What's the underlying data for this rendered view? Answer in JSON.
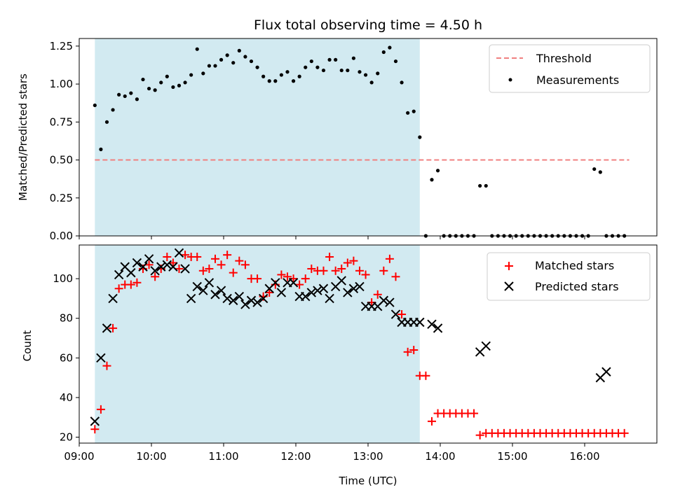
{
  "chart_data": [
    {
      "type": "scatter",
      "title": "Flux total observing time = 4.50 h",
      "ylabel": "Matched/Predicted stars",
      "xlabel": "",
      "xlim": [
        "09:00",
        "17:00"
      ],
      "ylim": [
        0,
        1.3
      ],
      "yticks": [
        "0.00",
        "0.25",
        "0.50",
        "0.75",
        "1.00",
        "1.25"
      ],
      "shaded_interval": [
        "09:13",
        "13:43"
      ],
      "shade_color": "#add8e6",
      "legend_position": "top-right",
      "threshold": {
        "name": "Threshold",
        "y": 0.5,
        "xrange": [
          "09:13",
          "16:37"
        ],
        "color": "#f08080"
      },
      "series": [
        {
          "name": "Measurements",
          "color": "#000000",
          "x": [
            "09:13",
            "09:18",
            "09:23",
            "09:28",
            "09:33",
            "09:38",
            "09:43",
            "09:48",
            "09:53",
            "09:58",
            "10:03",
            "10:08",
            "10:13",
            "10:18",
            "10:23",
            "10:28",
            "10:33",
            "10:38",
            "10:43",
            "10:48",
            "10:53",
            "10:58",
            "11:03",
            "11:08",
            "11:13",
            "11:18",
            "11:23",
            "11:28",
            "11:33",
            "11:38",
            "11:43",
            "11:48",
            "11:53",
            "11:58",
            "12:03",
            "12:08",
            "12:13",
            "12:18",
            "12:23",
            "12:28",
            "12:33",
            "12:38",
            "12:43",
            "12:48",
            "12:53",
            "12:58",
            "13:03",
            "13:08",
            "13:13",
            "13:18",
            "13:23",
            "13:28",
            "13:33",
            "13:38",
            "13:43",
            "13:48",
            "13:53",
            "13:58",
            "14:03",
            "14:08",
            "14:13",
            "14:18",
            "14:23",
            "14:28",
            "14:33",
            "14:38",
            "14:43",
            "14:48",
            "14:53",
            "14:58",
            "15:03",
            "15:08",
            "15:13",
            "15:18",
            "15:23",
            "15:28",
            "15:33",
            "15:38",
            "15:43",
            "15:48",
            "15:53",
            "15:58",
            "16:03",
            "16:08",
            "16:13",
            "16:18",
            "16:23",
            "16:28",
            "16:33"
          ],
          "y": [
            0.86,
            0.57,
            0.75,
            0.83,
            0.93,
            0.92,
            0.94,
            0.9,
            1.03,
            0.97,
            0.96,
            1.01,
            1.05,
            0.98,
            0.99,
            1.01,
            1.06,
            1.23,
            1.07,
            1.12,
            1.12,
            1.16,
            1.19,
            1.14,
            1.22,
            1.18,
            1.15,
            1.11,
            1.05,
            1.02,
            1.02,
            1.06,
            1.08,
            1.02,
            1.05,
            1.11,
            1.15,
            1.11,
            1.09,
            1.16,
            1.16,
            1.09,
            1.09,
            1.17,
            1.08,
            1.06,
            1.01,
            1.07,
            1.21,
            1.24,
            1.15,
            1.01,
            0.81,
            0.82,
            0.65,
            0.0,
            0.37,
            0.43,
            0.0,
            0.0,
            0.0,
            0.0,
            0.0,
            0.0,
            0.33,
            0.33,
            0.0,
            0.0,
            0.0,
            0.0,
            0.0,
            0.0,
            0.0,
            0.0,
            0.0,
            0.0,
            0.0,
            0.0,
            0.0,
            0.0,
            0.0,
            0.0,
            0.0,
            0.44,
            0.42,
            0.0,
            0.0,
            0.0,
            0.0
          ]
        }
      ]
    },
    {
      "type": "scatter",
      "title": "",
      "xlabel": "Time (UTC)",
      "ylabel": "Count",
      "xlim": [
        "09:00",
        "17:00"
      ],
      "xticks": [
        "09:00",
        "10:00",
        "11:00",
        "12:00",
        "13:00",
        "14:00",
        "15:00",
        "16:00"
      ],
      "ylim": [
        17,
        117
      ],
      "yticks": [
        "20",
        "40",
        "60",
        "80",
        "100"
      ],
      "shaded_interval": [
        "09:13",
        "13:43"
      ],
      "shade_color": "#add8e6",
      "legend_position": "top-right",
      "series": [
        {
          "name": "Matched stars",
          "color": "#ff0000",
          "marker": "plus",
          "x": [
            "09:13",
            "09:18",
            "09:23",
            "09:28",
            "09:33",
            "09:38",
            "09:43",
            "09:48",
            "09:53",
            "09:58",
            "10:03",
            "10:08",
            "10:13",
            "10:18",
            "10:23",
            "10:28",
            "10:33",
            "10:38",
            "10:43",
            "10:48",
            "10:53",
            "10:58",
            "11:03",
            "11:08",
            "11:13",
            "11:18",
            "11:23",
            "11:28",
            "11:33",
            "11:38",
            "11:43",
            "11:48",
            "11:53",
            "11:58",
            "12:03",
            "12:08",
            "12:13",
            "12:18",
            "12:23",
            "12:28",
            "12:33",
            "12:38",
            "12:43",
            "12:48",
            "12:53",
            "12:58",
            "13:03",
            "13:08",
            "13:13",
            "13:18",
            "13:23",
            "13:28",
            "13:33",
            "13:38",
            "13:43",
            "13:48",
            "13:53",
            "13:58",
            "14:03",
            "14:08",
            "14:13",
            "14:18",
            "14:23",
            "14:28",
            "14:33",
            "14:38",
            "14:43",
            "14:48",
            "14:53",
            "14:58",
            "15:03",
            "15:08",
            "15:13",
            "15:18",
            "15:23",
            "15:28",
            "15:33",
            "15:38",
            "15:43",
            "15:48",
            "15:53",
            "15:58",
            "16:03",
            "16:08",
            "16:13",
            "16:18",
            "16:23",
            "16:28",
            "16:33"
          ],
          "y": [
            24,
            34,
            56,
            75,
            95,
            97,
            97,
            98,
            105,
            107,
            101,
            105,
            111,
            108,
            105,
            112,
            111,
            111,
            104,
            105,
            110,
            107,
            112,
            103,
            109,
            107,
            100,
            100,
            91,
            93,
            97,
            102,
            101,
            100,
            97,
            100,
            105,
            104,
            104,
            111,
            104,
            105,
            108,
            109,
            104,
            102,
            88,
            92,
            104,
            110,
            101,
            82,
            63,
            64,
            51,
            51,
            28,
            32,
            32,
            32,
            32,
            32,
            32,
            32,
            21,
            22,
            22,
            22,
            22,
            22,
            22,
            22,
            22,
            22,
            22,
            22,
            22,
            22,
            22,
            22,
            22,
            22,
            22,
            22,
            22,
            22,
            22,
            22,
            22
          ]
        },
        {
          "name": "Predicted stars",
          "color": "#000000",
          "marker": "x",
          "x": [
            "09:13",
            "09:18",
            "09:23",
            "09:28",
            "09:33",
            "09:38",
            "09:43",
            "09:48",
            "09:53",
            "09:58",
            "10:03",
            "10:08",
            "10:13",
            "10:18",
            "10:23",
            "10:28",
            "10:33",
            "10:38",
            "10:43",
            "10:48",
            "10:53",
            "10:58",
            "11:03",
            "11:08",
            "11:13",
            "11:18",
            "11:23",
            "11:28",
            "11:33",
            "11:38",
            "11:43",
            "11:48",
            "11:53",
            "11:58",
            "12:03",
            "12:08",
            "12:13",
            "12:18",
            "12:23",
            "12:28",
            "12:33",
            "12:38",
            "12:43",
            "12:48",
            "12:53",
            "12:58",
            "13:03",
            "13:08",
            "13:13",
            "13:18",
            "13:23",
            "13:28",
            "13:33",
            "13:38",
            "13:43",
            "13:53",
            "13:58",
            "14:33",
            "14:38",
            "16:13",
            "16:18"
          ],
          "y": [
            28,
            60,
            75,
            90,
            102,
            106,
            103,
            108,
            106,
            110,
            104,
            106,
            107,
            106,
            113,
            105,
            90,
            96,
            94,
            98,
            92,
            94,
            90,
            89,
            91,
            87,
            89,
            88,
            90,
            95,
            98,
            93,
            98,
            98,
            91,
            91,
            93,
            94,
            95,
            90,
            96,
            99,
            93,
            95,
            96,
            86,
            86,
            86,
            89,
            88,
            82,
            78,
            78,
            78,
            78,
            77,
            75,
            63,
            66,
            50,
            53
          ]
        }
      ]
    }
  ]
}
